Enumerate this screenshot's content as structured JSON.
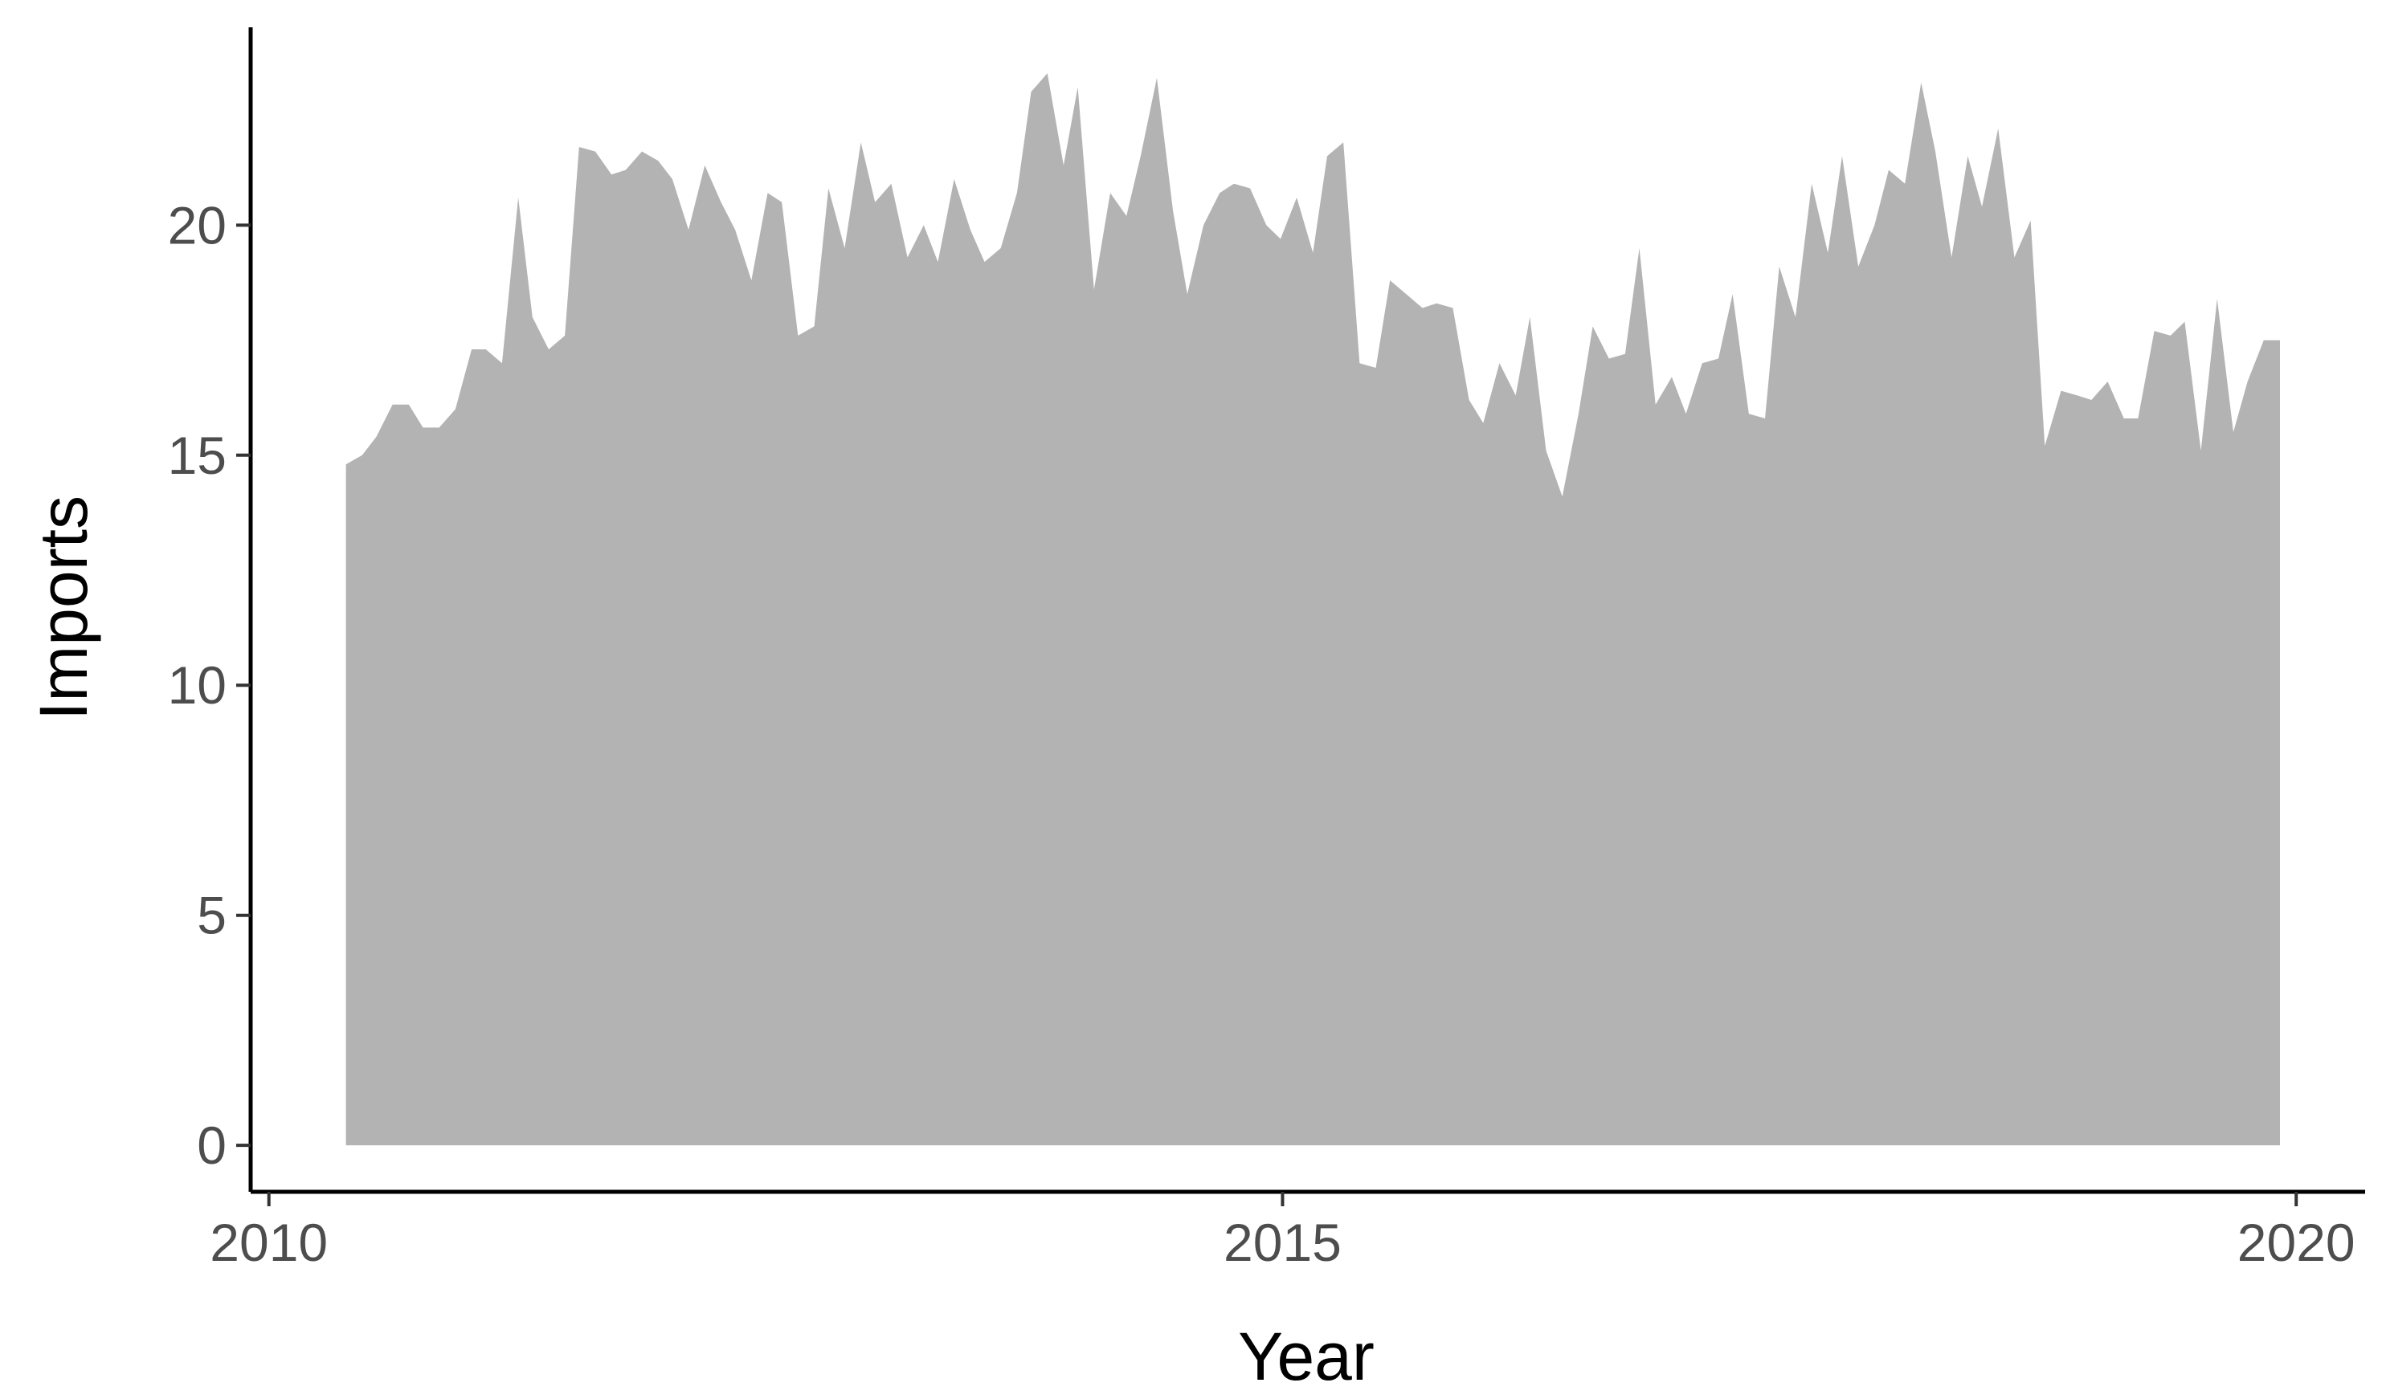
{
  "chart_data": {
    "type": "area",
    "xlabel": "Year",
    "ylabel": "Imports",
    "color": "#b3b3b3",
    "xlim": [
      2009.91,
      2020.34
    ],
    "xticks": [
      2010,
      2015,
      2020
    ],
    "ylim": [
      -1.01,
      24.3
    ],
    "yticks": [
      0,
      5,
      10,
      15,
      20
    ],
    "x": [
      2010.38,
      2010.46,
      2010.53,
      2010.61,
      2010.69,
      2010.76,
      2010.84,
      2010.92,
      2011.0,
      2011.07,
      2011.15,
      2011.23,
      2011.3,
      2011.38,
      2011.46,
      2011.53,
      2011.61,
      2011.69,
      2011.76,
      2011.84,
      2011.92,
      2011.99,
      2012.07,
      2012.15,
      2012.23,
      2012.3,
      2012.38,
      2012.46,
      2012.53,
      2012.61,
      2012.69,
      2012.76,
      2012.84,
      2012.92,
      2012.99,
      2013.07,
      2013.15,
      2013.23,
      2013.3,
      2013.38,
      2013.46,
      2013.53,
      2013.61,
      2013.69,
      2013.76,
      2013.84,
      2013.92,
      2013.99,
      2014.07,
      2014.15,
      2014.23,
      2014.3,
      2014.38,
      2014.46,
      2014.53,
      2014.61,
      2014.69,
      2014.76,
      2014.84,
      2014.92,
      2014.99,
      2015.07,
      2015.15,
      2015.22,
      2015.3,
      2015.38,
      2015.46,
      2015.53,
      2015.61,
      2015.69,
      2015.76,
      2015.84,
      2015.92,
      2015.99,
      2016.07,
      2016.15,
      2016.22,
      2016.3,
      2016.38,
      2016.46,
      2016.53,
      2016.61,
      2016.69,
      2016.76,
      2016.84,
      2016.92,
      2016.99,
      2017.07,
      2017.15,
      2017.22,
      2017.3,
      2017.38,
      2017.45,
      2017.53,
      2017.61,
      2017.69,
      2017.76,
      2017.84,
      2017.92,
      2017.99,
      2018.07,
      2018.15,
      2018.22,
      2018.3,
      2018.38,
      2018.45,
      2018.53,
      2018.61,
      2018.69,
      2018.76,
      2018.84,
      2018.92,
      2018.99,
      2019.07,
      2019.15,
      2019.22,
      2019.3,
      2019.38,
      2019.45,
      2019.53,
      2019.61,
      2019.69,
      2019.76,
      2019.84,
      2019.92
    ],
    "values": [
      14.8,
      15.0,
      15.4,
      16.1,
      16.1,
      15.6,
      15.6,
      16.0,
      17.3,
      17.3,
      17.0,
      20.6,
      18.0,
      17.3,
      17.6,
      21.7,
      21.6,
      21.1,
      21.2,
      21.6,
      21.4,
      21.0,
      19.9,
      21.3,
      20.5,
      19.9,
      18.8,
      20.7,
      20.5,
      17.6,
      17.8,
      20.8,
      19.5,
      21.8,
      20.5,
      20.9,
      19.3,
      20.0,
      19.2,
      21.0,
      19.9,
      19.2,
      19.5,
      20.7,
      22.9,
      23.3,
      21.3,
      23.0,
      18.6,
      20.7,
      20.2,
      21.5,
      23.2,
      20.3,
      18.5,
      20.0,
      20.7,
      20.9,
      20.8,
      20.0,
      19.7,
      20.6,
      19.4,
      21.5,
      21.8,
      17.0,
      16.9,
      18.8,
      18.5,
      18.2,
      18.3,
      18.2,
      16.2,
      15.7,
      17.0,
      16.3,
      18.0,
      15.1,
      14.1,
      15.9,
      17.8,
      17.1,
      17.2,
      19.5,
      16.1,
      16.7,
      15.9,
      17.0,
      17.1,
      18.5,
      15.9,
      15.8,
      19.1,
      18.0,
      20.9,
      19.4,
      21.5,
      19.1,
      20.0,
      21.2,
      20.9,
      23.1,
      21.6,
      19.3,
      21.5,
      20.4,
      22.1,
      19.3,
      20.1,
      15.2,
      16.4,
      16.3,
      16.2,
      16.6,
      15.8,
      15.8,
      17.7,
      17.6,
      17.9,
      15.1,
      18.4,
      15.5,
      16.6,
      17.5,
      17.5
    ]
  }
}
